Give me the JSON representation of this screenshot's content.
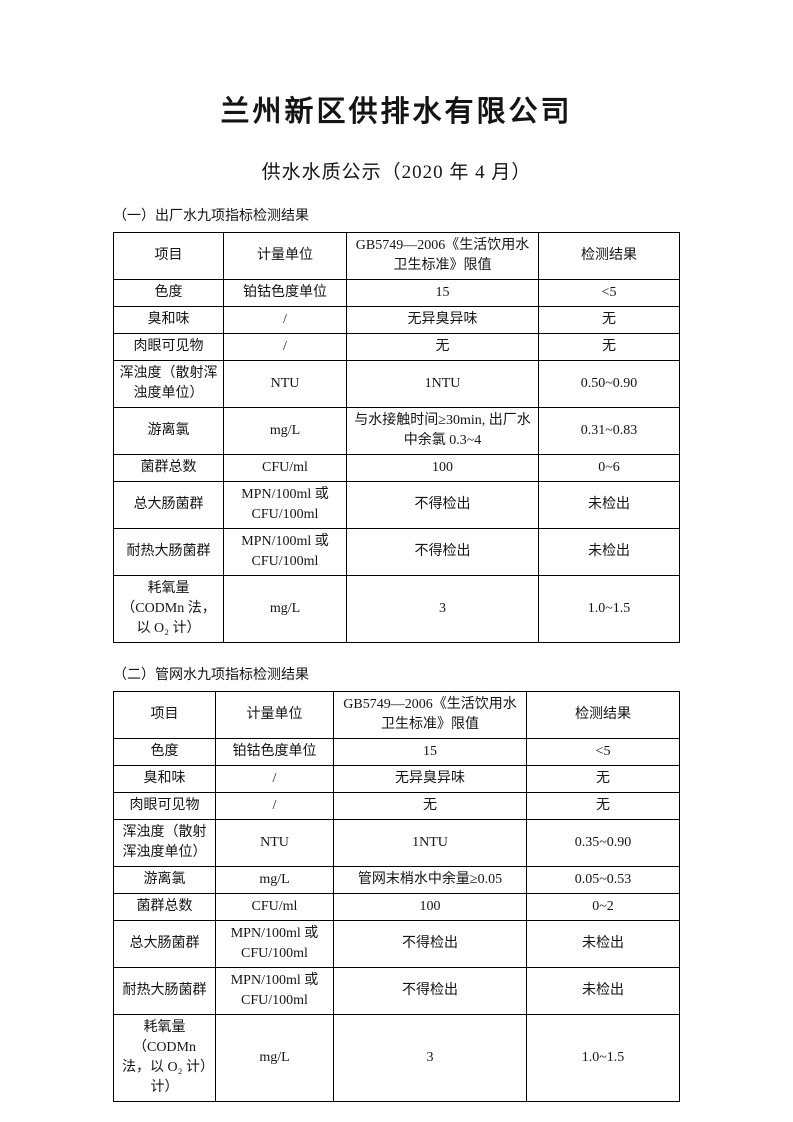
{
  "page": {
    "title": "兰州新区供排水有限公司",
    "subtitle": "供水水质公示（2020 年 4 月）"
  },
  "colors": {
    "text": "#141414",
    "table_border": "#000000",
    "background": "#ffffff"
  },
  "sections": [
    {
      "label": "（一）出厂水九项指标检测结果",
      "table": {
        "headers": [
          "项目",
          "计量单位",
          "GB5749—2006《生活饮用水卫生标准》限值",
          "检测结果"
        ],
        "rows": [
          [
            "色度",
            "铂钴色度单位",
            "15",
            "<5"
          ],
          [
            "臭和味",
            "/",
            "无异臭异味",
            "无"
          ],
          [
            "肉眼可见物",
            "/",
            "无",
            "无"
          ],
          [
            "浑浊度（散射浑浊度单位）",
            "NTU",
            "1NTU",
            "0.50~0.90"
          ],
          [
            "游离氯",
            "mg/L",
            "与水接触时间≥30min, 出厂水中余氯 0.3~4",
            "0.31~0.83"
          ],
          [
            "菌群总数",
            "CFU/ml",
            "100",
            "0~6"
          ],
          [
            "总大肠菌群",
            "MPN/100ml 或 CFU/100ml",
            "不得检出",
            "未检出"
          ],
          [
            "耐热大肠菌群",
            "MPN/100ml 或 CFU/100ml",
            "不得检出",
            "未检出"
          ],
          [
            "耗氧量（CODMn 法，以 O₂ 计）",
            "mg/L",
            "3",
            "1.0~1.5"
          ]
        ]
      }
    },
    {
      "label": "（二）管网水九项指标检测结果",
      "table": {
        "headers": [
          "项目",
          "计量单位",
          "GB5749—2006《生活饮用水卫生标准》限值",
          "检测结果"
        ],
        "rows": [
          [
            "色度",
            "铂钴色度单位",
            "15",
            "<5"
          ],
          [
            "臭和味",
            "/",
            "无异臭异味",
            "无"
          ],
          [
            "肉眼可见物",
            "/",
            "无",
            "无"
          ],
          [
            "浑浊度（散射浑浊度单位）",
            "NTU",
            "1NTU",
            "0.35~0.90"
          ],
          [
            "游离氯",
            "mg/L",
            "管网末梢水中余量≥0.05",
            "0.05~0.53"
          ],
          [
            "菌群总数",
            "CFU/ml",
            "100",
            "0~2"
          ],
          [
            "总大肠菌群",
            "MPN/100ml 或 CFU/100ml",
            "不得检出",
            "未检出"
          ],
          [
            "耐热大肠菌群",
            "MPN/100ml 或 CFU/100ml",
            "不得检出",
            "未检出"
          ],
          [
            "耗氧量（CODMn 法，以 O₂ 计）计）",
            "mg/L",
            "3",
            "1.0~1.5"
          ]
        ]
      }
    }
  ]
}
